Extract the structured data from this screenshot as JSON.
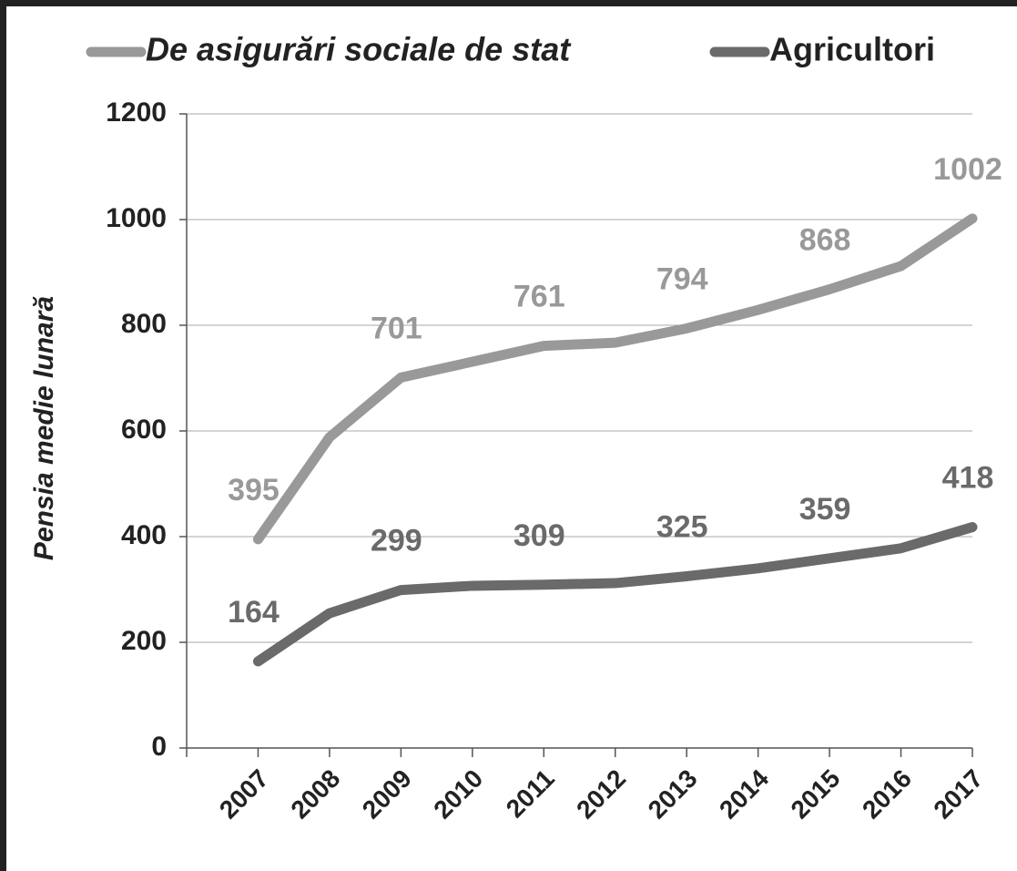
{
  "chart_data": {
    "type": "line",
    "y_label": "Pensia medie lunară",
    "categories": [
      "2007",
      "2008",
      "2009",
      "2010",
      "2011",
      "2012",
      "2013",
      "2014",
      "2015",
      "2016",
      "2017"
    ],
    "series": [
      {
        "name": "De asigurări sociale de stat",
        "color": "#999999",
        "values": [
          395,
          588,
          701,
          731,
          761,
          767,
          794,
          829,
          868,
          912,
          1002
        ],
        "value_labels": [
          "395",
          null,
          "701",
          null,
          "761",
          null,
          "794",
          null,
          "868",
          null,
          "1002"
        ]
      },
      {
        "name": "Agricultori",
        "color": "#6a6a6a",
        "values": [
          164,
          255,
          299,
          307,
          309,
          312,
          325,
          340,
          359,
          378,
          418
        ],
        "value_labels": [
          "164",
          null,
          "299",
          null,
          "309",
          null,
          "325",
          null,
          "359",
          null,
          "418"
        ]
      }
    ],
    "ylim": [
      0,
      1200
    ],
    "yticks": [
      0,
      200,
      400,
      600,
      800,
      1000,
      1200
    ],
    "grid": true,
    "legend": "top"
  }
}
